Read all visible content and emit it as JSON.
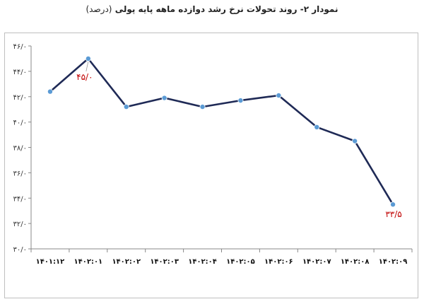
{
  "chart_data": {
    "type": "line",
    "title": "نمودار ۲- روند تحولات نرخ رشد دوازده ماهه پایه پولی",
    "subtitle": "(درصد)",
    "categories": [
      "۱۴۰۱:۱۲",
      "۱۴۰۲:۰۱",
      "۱۴۰۲:۰۲",
      "۱۴۰۲:۰۳",
      "۱۴۰۲:۰۴",
      "۱۴۰۲:۰۵",
      "۱۴۰۲:۰۶",
      "۱۴۰۲:۰۷",
      "۱۴۰۲:۰۸",
      "۱۴۰۲:۰۹"
    ],
    "series": [
      {
        "values": [
          42.4,
          45.0,
          41.2,
          41.9,
          41.2,
          41.7,
          42.1,
          39.6,
          38.5,
          33.5
        ]
      }
    ],
    "ylim": [
      30,
      46
    ],
    "yticks": [
      30,
      32,
      34,
      36,
      38,
      40,
      42,
      44,
      46
    ],
    "ytick_labels": [
      "۳۰/۰",
      "۳۲/۰",
      "۳۴/۰",
      "۳۶/۰",
      "۳۸/۰",
      "۴۰/۰",
      "۴۲/۰",
      "۴۴/۰",
      "۴۶/۰"
    ],
    "data_labels": [
      {
        "index": 1,
        "text": "۴۵/۰"
      },
      {
        "index": 9,
        "text": "۳۳/۵"
      }
    ],
    "grid": false,
    "legend": "none",
    "line_color": "#1f2a56",
    "marker_color": "#5b9bd5",
    "label_color": "#c00000"
  }
}
